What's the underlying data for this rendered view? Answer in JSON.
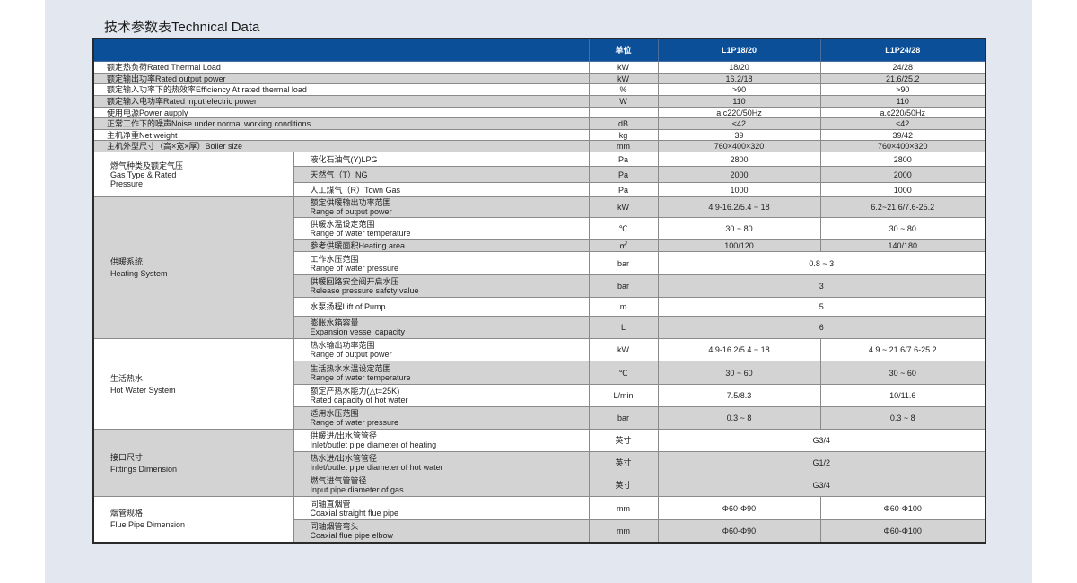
{
  "title": "技术参数表Technical Data",
  "header": {
    "unit_label": "单位",
    "models": [
      "L1P18/20",
      "L1P24/28"
    ]
  },
  "simple_rows": [
    {
      "label": "额定热负荷Rated Thermal Load",
      "unit": "kW",
      "values": [
        "18/20",
        "24/28"
      ]
    },
    {
      "label": "额定输出功率Rated output power",
      "unit": "kW",
      "values": [
        "16.2/18",
        "21.6/25.2"
      ]
    },
    {
      "label": "额定输入功率下的热效率Efficiency At rated thermal load",
      "unit": "%",
      "values": [
        ">90",
        ">90"
      ]
    },
    {
      "label": "额定输入电功率Rated input electric power",
      "unit": "W",
      "values": [
        "110",
        "110"
      ]
    },
    {
      "label": "使用电源Power aupply",
      "unit": "",
      "values": [
        "a.c220/50Hz",
        "a.c220/50Hz"
      ]
    },
    {
      "label": "正常工作下的噪声Noise under normal working conditions",
      "unit": "dB",
      "values": [
        "≤42",
        "≤42"
      ]
    },
    {
      "label": "主机净重Net weight",
      "unit": "kg",
      "values": [
        "39",
        "39/42"
      ]
    },
    {
      "label": "主机外型尺寸（高×宽×厚）Boiler size",
      "unit": "mm",
      "values": [
        "760×400×320",
        "760×400×320"
      ]
    }
  ],
  "groups": [
    {
      "label_cn": "燃气种类及额定气压",
      "label_en": "Gas Type & Rated\nPressure",
      "rows": [
        {
          "label": "液化石油气(Y)LPG",
          "unit": "Pa",
          "values": [
            "2800",
            "2800"
          ]
        },
        {
          "label": "天然气（T）NG",
          "unit": "Pa",
          "values": [
            "2000",
            "2000"
          ]
        },
        {
          "label": "人工煤气（R）Town Gas",
          "unit": "Pa",
          "values": [
            "1000",
            "1000"
          ]
        }
      ]
    },
    {
      "label_cn": "供暖系统",
      "label_en": "Heating System",
      "rows": [
        {
          "label": "额定供暖输出功率范围",
          "label_en": "Range of output power",
          "unit": "kW",
          "values": [
            "4.9-16.2/5.4 ~ 18",
            "6.2~21.6/7.6-25.2"
          ]
        },
        {
          "label": "供暖水温设定范围",
          "label_en": "Range of water temperature",
          "unit": "℃",
          "values": [
            "30 ~ 80",
            "30 ~ 80"
          ]
        },
        {
          "label": "参考供暖面积Heating area",
          "unit": "㎡",
          "values": [
            "100/120",
            "140/180"
          ]
        },
        {
          "label": "工作水压范围",
          "label_en": "Range of water pressure",
          "unit": "bar",
          "value": "0.8 ~ 3"
        },
        {
          "label": "供暖回路安全阀开启水压",
          "label_en": "Release pressure safety value",
          "unit": "bar",
          "value": "3"
        },
        {
          "label": "水泵扬程Lift of Pump",
          "unit": "m",
          "value": "5"
        },
        {
          "label": "膨胀水箱容量",
          "label_en": "Expansion vessel capacity",
          "unit": "L",
          "value": "6"
        }
      ]
    },
    {
      "label_cn": "生活热水",
      "label_en": "Hot Water System",
      "rows": [
        {
          "label": "热水输出功率范围",
          "label_en": "Range of output power",
          "unit": "kW",
          "values": [
            "4.9-16.2/5.4 ~ 18",
            "4.9 ~ 21.6/7.6-25.2"
          ]
        },
        {
          "label": "生活热水水温设定范围",
          "label_en": "Range of water temperature",
          "unit": "℃",
          "values": [
            "30 ~ 60",
            "30 ~ 60"
          ]
        },
        {
          "label": "额定产热水能力(△t=25K)",
          "label_en": "Rated capacity of hot water",
          "unit": "L/min",
          "values": [
            "7.5/8.3",
            "10/11.6"
          ]
        },
        {
          "label": "适用水压范围",
          "label_en": "Range of water pressure",
          "unit": "bar",
          "values": [
            "0.3 ~ 8",
            "0.3 ~ 8"
          ]
        }
      ]
    },
    {
      "label_cn": "接口尺寸",
      "label_en": "Fittings Dimension",
      "rows": [
        {
          "label": "供暖进/出水管管径",
          "label_en": "Inlet/outlet pipe diameter of heating",
          "unit": "英寸",
          "value": "G3/4"
        },
        {
          "label": "热水进/出水管管径",
          "label_en": "Inlet/outlet pipe diameter of hot water",
          "unit": "英寸",
          "value": "G1/2"
        },
        {
          "label": "燃气进气管管径",
          "label_en": "Input pipe diameter of gas",
          "unit": "英寸",
          "value": "G3/4"
        }
      ]
    },
    {
      "label_cn": "烟管规格",
      "label_en": "Flue Pipe Dimension",
      "rows": [
        {
          "label": "同轴直烟管",
          "label_en": "Coaxial straight flue pipe",
          "unit": "mm",
          "values": [
            "Φ60-Φ90",
            "Φ60-Φ100"
          ]
        },
        {
          "label": "同轴烟管弯头",
          "label_en": "Coaxial flue pipe elbow",
          "unit": "mm",
          "values": [
            "Φ60-Φ90",
            "Φ60-Φ100"
          ]
        }
      ]
    }
  ]
}
